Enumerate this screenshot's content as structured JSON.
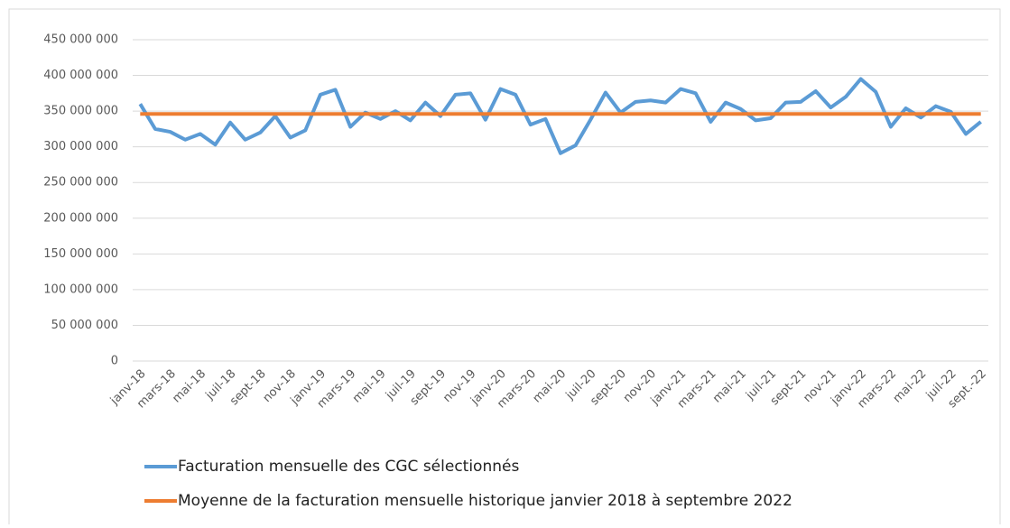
{
  "chart_data": {
    "type": "line",
    "categories": [
      "janv-18",
      null,
      "mars-18",
      null,
      "mai-18",
      null,
      "juil-18",
      null,
      "sept-18",
      null,
      "nov-18",
      null,
      "janv-19",
      null,
      "mars-19",
      null,
      "mai-19",
      null,
      "juil-19",
      null,
      "sept-19",
      null,
      "nov-19",
      null,
      "janv-20",
      null,
      "mars-20",
      null,
      "mai-20",
      null,
      "juil-20",
      null,
      "sept-20",
      null,
      "nov-20",
      null,
      "janv-21",
      null,
      "mars-21",
      null,
      "mai-21",
      null,
      "juil-21",
      null,
      "sept-21",
      null,
      "nov-21",
      null,
      "janv-22",
      null,
      "mars-22",
      null,
      "mai-22",
      null,
      "juil-22",
      null,
      "sept.-22"
    ],
    "series": [
      {
        "name": "Facturation mensuelle des CGC sélectionnés",
        "color": "#5b9bd5",
        "values": [
          360000000,
          325000000,
          321000000,
          310000000,
          318000000,
          303000000,
          334000000,
          310000000,
          320000000,
          343000000,
          313000000,
          323000000,
          373000000,
          380000000,
          328000000,
          348000000,
          339000000,
          350000000,
          337000000,
          362000000,
          343000000,
          373000000,
          375000000,
          338000000,
          381000000,
          373000000,
          331000000,
          339000000,
          291000000,
          302000000,
          338000000,
          376000000,
          348000000,
          363000000,
          365000000,
          362000000,
          381000000,
          375000000,
          335000000,
          362000000,
          353000000,
          337000000,
          340000000,
          362000000,
          363000000,
          378000000,
          355000000,
          370000000,
          395000000,
          377000000,
          328000000,
          354000000,
          341000000,
          357000000,
          349000000,
          318000000,
          335000000
        ]
      },
      {
        "name": "Moyenne de la facturation mensuelle historique janvier 2018 à septembre 2022",
        "color": "#ed7d31",
        "values": [
          346000000,
          346000000,
          346000000,
          346000000,
          346000000,
          346000000,
          346000000,
          346000000,
          346000000,
          346000000,
          346000000,
          346000000,
          346000000,
          346000000,
          346000000,
          346000000,
          346000000,
          346000000,
          346000000,
          346000000,
          346000000,
          346000000,
          346000000,
          346000000,
          346000000,
          346000000,
          346000000,
          346000000,
          346000000,
          346000000,
          346000000,
          346000000,
          346000000,
          346000000,
          346000000,
          346000000,
          346000000,
          346000000,
          346000000,
          346000000,
          346000000,
          346000000,
          346000000,
          346000000,
          346000000,
          346000000,
          346000000,
          346000000,
          346000000,
          346000000,
          346000000,
          346000000,
          346000000,
          346000000,
          346000000,
          346000000,
          346000000
        ]
      }
    ],
    "ylim": [
      0,
      450000000
    ],
    "yticks": [
      0,
      {
        "value": 50000000,
        "label": "50 000 000"
      },
      {
        "value": 100000000,
        "label": "100 000 000"
      },
      {
        "value": 150000000,
        "label": "150 000 000"
      },
      {
        "value": 200000000,
        "label": "200 000 000"
      },
      {
        "value": 250000000,
        "label": "250 000 000"
      },
      {
        "value": 300000000,
        "label": "300 000 000"
      },
      {
        "value": 350000000,
        "label": "350 000 000"
      },
      {
        "value": 400000000,
        "label": "400 000 000"
      },
      {
        "value": 450000000,
        "label": "450 000 000"
      }
    ],
    "grid": true
  }
}
